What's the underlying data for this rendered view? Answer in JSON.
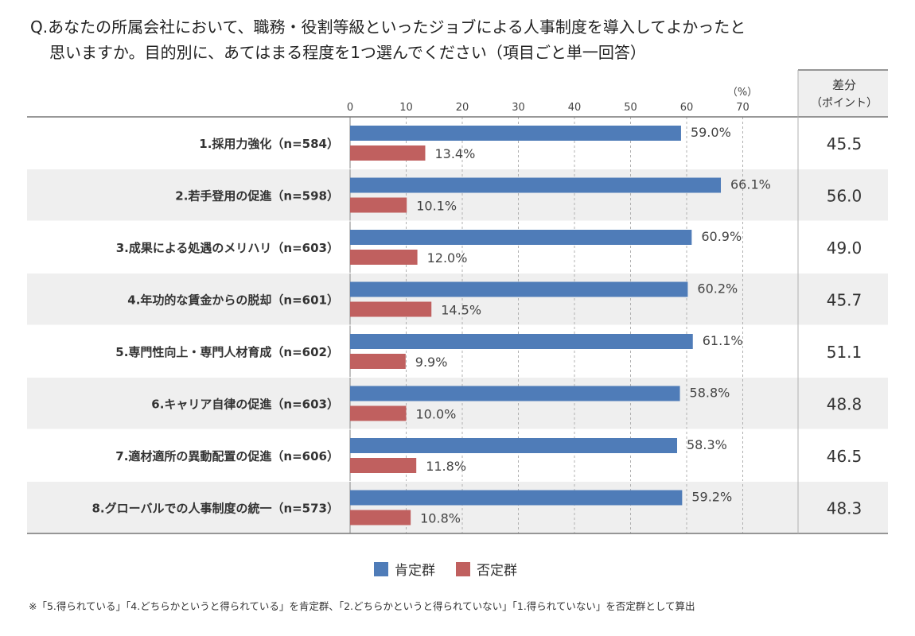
{
  "title_line1": "Q.あなたの所属会社において、職務・役割等級といったジョブによる人事制度を導入してよかったと",
  "title_line2": "思いますか。目的別に、あてはまる程度を1つ選んでください（項目ごと単一回答）",
  "diff_header_line1": "差分",
  "diff_header_line2": "（ポイント）",
  "unit_label": "（%）",
  "note": "※「5.得られている」「4.どちらかというと得られている」を肯定群、「2.どちらかというと得られていない」「1.得られていない」を否定群として算出",
  "colors": {
    "positive": "#4f7cb8",
    "negative": "#c0605f",
    "row_alt": "#efefef"
  },
  "chart_data": {
    "type": "bar",
    "orientation": "horizontal",
    "categories": [
      "1.採用力強化（n=584）",
      "2.若手登用の促進（n=598）",
      "3.成果による処遇のメリハリ（n=603）",
      "4.年功的な賃金からの脱却（n=601）",
      "5.専門性向上・専門人材育成（n=602）",
      "6.キャリア自律の促進（n=603）",
      "7.適材適所の異動配置の促進（n=606）",
      "8.グローバルでの人事制度の統一（n=573）"
    ],
    "series": [
      {
        "name": "肯定群",
        "values": [
          59.0,
          66.1,
          60.9,
          60.2,
          61.1,
          58.8,
          58.3,
          59.2
        ],
        "labels": [
          "59.0%",
          "66.1%",
          "60.9%",
          "60.2%",
          "61.1%",
          "58.8%",
          "58.3%",
          "59.2%"
        ]
      },
      {
        "name": "否定群",
        "values": [
          13.4,
          10.1,
          12.0,
          14.5,
          9.9,
          10.0,
          11.8,
          10.8
        ],
        "labels": [
          "13.4%",
          "10.1%",
          "12.0%",
          "14.5%",
          "9.9%",
          "10.0%",
          "11.8%",
          "10.8%"
        ]
      }
    ],
    "diff": [
      "45.5",
      "56.0",
      "49.0",
      "45.7",
      "51.1",
      "48.8",
      "46.5",
      "48.3"
    ],
    "xlim": [
      0,
      70
    ],
    "xticks": [
      0,
      10,
      20,
      30,
      40,
      50,
      60,
      70
    ],
    "grid": true,
    "legend": "bottom"
  }
}
